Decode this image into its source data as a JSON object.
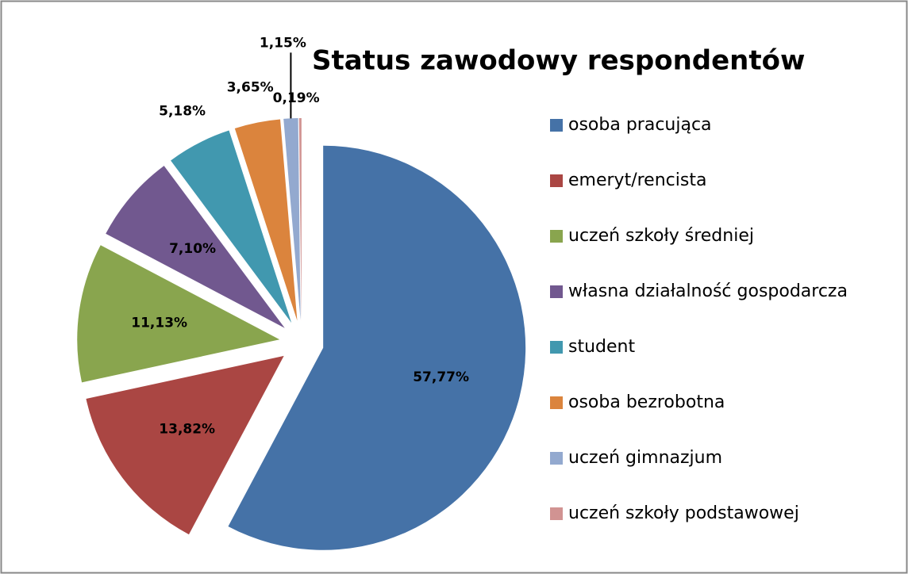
{
  "chart_data": {
    "type": "pie",
    "title": "Status zawodowy respondentów",
    "categories": [
      "osoba pracująca",
      "emeryt/rencista",
      "uczeń szkoły średniej",
      "własna działalność gospodarcza",
      "student",
      "osoba bezrobotna",
      "uczeń gimnazjum",
      "uczeń szkoły podstawowej"
    ],
    "values": [
      57.77,
      13.82,
      11.13,
      7.1,
      5.18,
      3.65,
      1.15,
      0.19
    ],
    "value_labels": [
      "57,77%",
      "13,82%",
      "11,13%",
      "7,10%",
      "5,18%",
      "3,65%",
      "1,15%",
      "0,19%"
    ],
    "colors": [
      "#4572a7",
      "#aa4643",
      "#89a54e",
      "#71588f",
      "#4198af",
      "#db843d",
      "#93a9cf",
      "#d19392"
    ],
    "legend": "right"
  }
}
